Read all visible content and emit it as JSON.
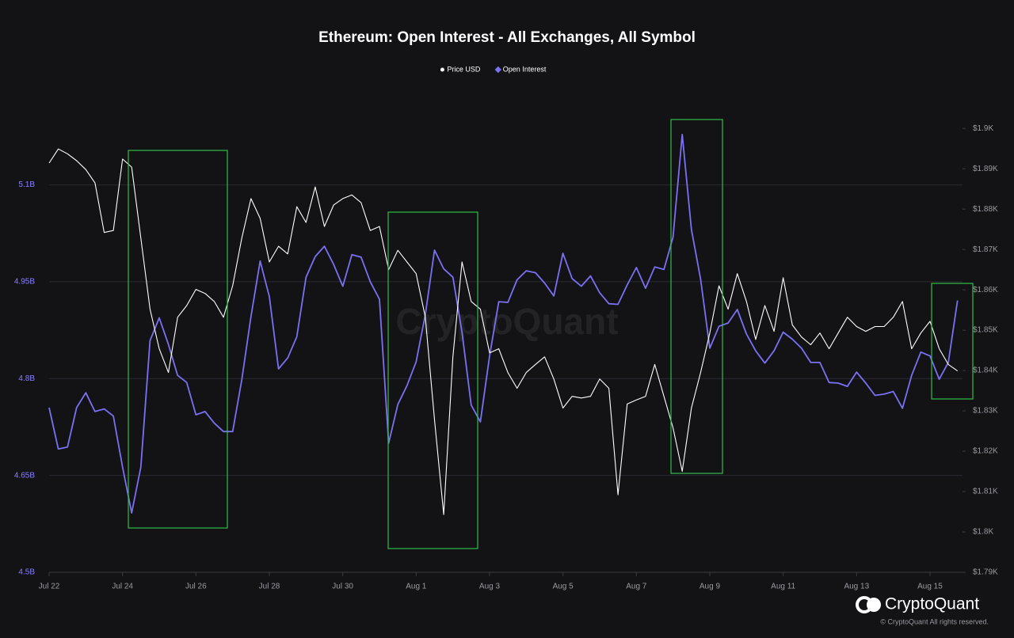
{
  "chart_data": {
    "type": "line",
    "title": "Ethereum: Open Interest - All Exchanges, All Symbol",
    "watermark": "CryptoQuant",
    "brand": "CryptoQuant",
    "copyright": "© CryptoQuant All rights reserved.",
    "grid": true,
    "legend": "top",
    "categories": [
      "Jul 22",
      null,
      null,
      null,
      null,
      null,
      null,
      null,
      "Jul 24",
      null,
      null,
      null,
      null,
      null,
      null,
      null,
      "Jul 26",
      null,
      null,
      null,
      null,
      null,
      null,
      null,
      "Jul 28",
      null,
      null,
      null,
      null,
      null,
      null,
      null,
      "Jul 30",
      null,
      null,
      null,
      null,
      null,
      null,
      null,
      "Aug 1",
      null,
      null,
      null,
      null,
      null,
      null,
      null,
      "Aug 3",
      null,
      null,
      null,
      null,
      null,
      null,
      null,
      "Aug 5",
      null,
      null,
      null,
      null,
      null,
      null,
      null,
      "Aug 7",
      null,
      null,
      null,
      null,
      null,
      null,
      null,
      "Aug 9",
      null,
      null,
      null,
      null,
      null,
      null,
      null,
      "Aug 11",
      null,
      null,
      null,
      null,
      null,
      null,
      null,
      "Aug 13",
      null,
      null,
      null,
      null,
      null,
      null,
      null,
      "Aug 15",
      null,
      null,
      null
    ],
    "ylim": [
      4.5,
      5.2
    ],
    "yticks": [
      {
        "value": 4.5,
        "label": "4.5B"
      },
      {
        "value": 4.65,
        "label": "4.65B"
      },
      {
        "value": 4.8,
        "label": "4.8B"
      },
      {
        "value": 4.95,
        "label": "4.95B"
      },
      {
        "value": 5.1,
        "label": "5.1B"
      }
    ],
    "y2lim": [
      1790,
      1902
    ],
    "y2ticks": [
      {
        "value": 1790,
        "label": "$1.79K"
      },
      {
        "value": 1800,
        "label": "$1.8K"
      },
      {
        "value": 1810,
        "label": "$1.81K"
      },
      {
        "value": 1820,
        "label": "$1.82K"
      },
      {
        "value": 1830,
        "label": "$1.83K"
      },
      {
        "value": 1840,
        "label": "$1.84K"
      },
      {
        "value": 1850,
        "label": "$1.85K"
      },
      {
        "value": 1860,
        "label": "$1.86K"
      },
      {
        "value": 1870,
        "label": "$1.87K"
      },
      {
        "value": 1880,
        "label": "$1.88K"
      },
      {
        "value": 1890,
        "label": "$1.89K"
      },
      {
        "value": 1900,
        "label": "$1.9K"
      }
    ],
    "series": [
      {
        "name": "Price USD",
        "color": "#ffffff",
        "axis": "y2",
        "marker": "circle",
        "values": [
          1891.4,
          1894.9,
          1893.7,
          1892.0,
          1889.8,
          1886.5,
          1874.2,
          1874.7,
          1892.4,
          1890.4,
          1872.8,
          1855.2,
          1845.4,
          1839.5,
          1853.2,
          1856.1,
          1860.1,
          1859.1,
          1857.1,
          1853.2,
          1861.0,
          1872.8,
          1882.6,
          1877.7,
          1866.9,
          1870.8,
          1868.9,
          1880.6,
          1876.7,
          1885.5,
          1875.7,
          1881.0,
          1882.6,
          1883.5,
          1881.6,
          1874.7,
          1875.7,
          1865.0,
          1869.8,
          1866.9,
          1864.0,
          1853.2,
          1827.8,
          1804.3,
          1843.4,
          1866.9,
          1857.1,
          1855.2,
          1844.4,
          1845.4,
          1839.5,
          1835.6,
          1839.5,
          1841.5,
          1843.4,
          1837.9,
          1830.7,
          1833.6,
          1833.2,
          1833.6,
          1837.9,
          1835.6,
          1809.2,
          1831.7,
          1832.7,
          1833.6,
          1841.5,
          1833.6,
          1825.8,
          1815.0,
          1830.7,
          1839.5,
          1849.3,
          1861.0,
          1855.2,
          1864.0,
          1857.1,
          1847.7,
          1856.1,
          1849.7,
          1863.0,
          1851.3,
          1848.3,
          1846.4,
          1849.3,
          1845.4,
          1849.3,
          1853.2,
          1850.9,
          1849.7,
          1850.9,
          1850.9,
          1853.2,
          1857.1,
          1845.4,
          1849.3,
          1852.2,
          1845.4,
          1841.5,
          1839.9
        ]
      },
      {
        "name": "Open Interest",
        "color": "#7b70f2",
        "axis": "y",
        "marker": "diamond",
        "values": [
          4.755,
          4.691,
          4.694,
          4.755,
          4.778,
          4.749,
          4.753,
          4.742,
          4.663,
          4.592,
          4.663,
          4.859,
          4.894,
          4.853,
          4.805,
          4.794,
          4.744,
          4.749,
          4.731,
          4.718,
          4.718,
          4.798,
          4.896,
          4.982,
          4.927,
          4.815,
          4.832,
          4.865,
          4.957,
          4.989,
          5.005,
          4.977,
          4.943,
          4.992,
          4.988,
          4.95,
          4.923,
          4.7,
          4.76,
          4.789,
          4.826,
          4.899,
          4.999,
          4.97,
          4.957,
          4.872,
          4.759,
          4.733,
          4.835,
          4.919,
          4.918,
          4.953,
          4.967,
          4.964,
          4.948,
          4.928,
          4.994,
          4.955,
          4.943,
          4.959,
          4.933,
          4.916,
          4.915,
          4.945,
          4.972,
          4.94,
          4.973,
          4.969,
          5.019,
          5.178,
          5.031,
          4.954,
          4.847,
          4.881,
          4.886,
          4.907,
          4.869,
          4.843,
          4.824,
          4.843,
          4.872,
          4.861,
          4.847,
          4.825,
          4.825,
          4.794,
          4.793,
          4.788,
          4.81,
          4.793,
          4.774,
          4.776,
          4.78,
          4.754,
          4.805,
          4.841,
          4.835,
          4.799,
          4.825,
          4.921
        ]
      }
    ]
  }
}
